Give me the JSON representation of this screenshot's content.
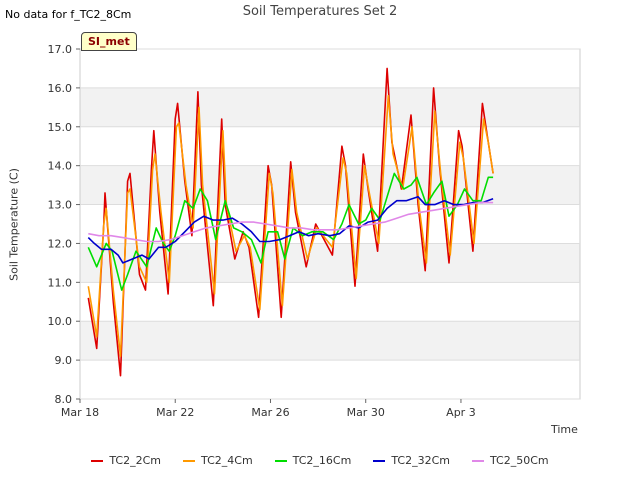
{
  "note": "No data for f_TC2_8Cm",
  "site_badge": "SI_met",
  "chart_data": {
    "type": "line",
    "title": "Soil Temperatures Set 2",
    "xlabel": "Time",
    "ylabel": "Soil Temperature (C)",
    "ylim": [
      8.0,
      17.0
    ],
    "xlim": [
      0,
      21
    ],
    "y_ticks": [
      "8.0",
      "9.0",
      "10.0",
      "11.0",
      "12.0",
      "13.0",
      "14.0",
      "15.0",
      "16.0",
      "17.0"
    ],
    "x_ticks": [
      {
        "x": 0,
        "label": "Mar 18"
      },
      {
        "x": 4,
        "label": "Mar 22"
      },
      {
        "x": 8,
        "label": "Mar 26"
      },
      {
        "x": 12,
        "label": "Mar 30"
      },
      {
        "x": 16,
        "label": "Apr 3"
      }
    ],
    "grid": true,
    "legend_position": "bottom",
    "x_units": "days since Mar 18",
    "series": [
      {
        "name": "TC2_2Cm",
        "color": "#dd0000",
        "points": [
          [
            0.35,
            10.6
          ],
          [
            0.7,
            9.3
          ],
          [
            1.0,
            12.5
          ],
          [
            1.05,
            13.3
          ],
          [
            1.4,
            10.5
          ],
          [
            1.7,
            8.6
          ],
          [
            2.0,
            13.6
          ],
          [
            2.1,
            13.8
          ],
          [
            2.5,
            11.2
          ],
          [
            2.75,
            10.8
          ],
          [
            3.0,
            13.9
          ],
          [
            3.1,
            14.9
          ],
          [
            3.35,
            12.8
          ],
          [
            3.7,
            10.7
          ],
          [
            4.0,
            15.2
          ],
          [
            4.1,
            15.6
          ],
          [
            4.4,
            13.6
          ],
          [
            4.7,
            12.2
          ],
          [
            4.95,
            15.9
          ],
          [
            5.1,
            13.5
          ],
          [
            5.6,
            10.4
          ],
          [
            5.95,
            15.2
          ],
          [
            6.1,
            13.0
          ],
          [
            6.5,
            11.6
          ],
          [
            6.85,
            12.3
          ],
          [
            7.1,
            11.9
          ],
          [
            7.5,
            10.1
          ],
          [
            7.9,
            14.0
          ],
          [
            8.05,
            13.5
          ],
          [
            8.45,
            10.1
          ],
          [
            8.85,
            14.1
          ],
          [
            9.05,
            12.8
          ],
          [
            9.5,
            11.4
          ],
          [
            9.9,
            12.5
          ],
          [
            10.6,
            11.7
          ],
          [
            11.0,
            14.5
          ],
          [
            11.15,
            14.0
          ],
          [
            11.55,
            10.9
          ],
          [
            11.9,
            14.3
          ],
          [
            12.1,
            13.4
          ],
          [
            12.5,
            11.8
          ],
          [
            12.9,
            16.5
          ],
          [
            13.1,
            14.6
          ],
          [
            13.5,
            13.4
          ],
          [
            13.9,
            15.3
          ],
          [
            14.2,
            13.0
          ],
          [
            14.5,
            11.3
          ],
          [
            14.85,
            16.0
          ],
          [
            15.1,
            14.0
          ],
          [
            15.5,
            11.5
          ],
          [
            15.9,
            14.9
          ],
          [
            16.05,
            14.5
          ],
          [
            16.5,
            11.8
          ],
          [
            16.9,
            15.6
          ],
          [
            17.1,
            14.8
          ],
          [
            17.35,
            13.8
          ]
        ]
      },
      {
        "name": "TC2_4Cm",
        "color": "#ff9900",
        "points": [
          [
            0.35,
            10.9
          ],
          [
            0.7,
            9.6
          ],
          [
            1.0,
            12.5
          ],
          [
            1.1,
            12.9
          ],
          [
            1.4,
            10.8
          ],
          [
            1.7,
            9.1
          ],
          [
            2.0,
            13.3
          ],
          [
            2.1,
            13.4
          ],
          [
            2.5,
            11.4
          ],
          [
            2.8,
            11.0
          ],
          [
            3.05,
            13.9
          ],
          [
            3.15,
            14.3
          ],
          [
            3.4,
            12.8
          ],
          [
            3.75,
            11.0
          ],
          [
            4.05,
            15.0
          ],
          [
            4.15,
            15.1
          ],
          [
            4.45,
            13.5
          ],
          [
            4.75,
            12.4
          ],
          [
            5.0,
            15.5
          ],
          [
            5.15,
            13.5
          ],
          [
            5.65,
            10.7
          ],
          [
            6.0,
            14.9
          ],
          [
            6.15,
            13.0
          ],
          [
            6.55,
            11.8
          ],
          [
            6.9,
            12.2
          ],
          [
            7.15,
            11.9
          ],
          [
            7.55,
            10.3
          ],
          [
            7.95,
            13.8
          ],
          [
            8.1,
            13.3
          ],
          [
            8.5,
            10.4
          ],
          [
            8.9,
            13.9
          ],
          [
            9.1,
            12.8
          ],
          [
            9.55,
            11.6
          ],
          [
            9.95,
            12.4
          ],
          [
            10.6,
            11.9
          ],
          [
            11.05,
            14.2
          ],
          [
            11.2,
            13.8
          ],
          [
            11.6,
            11.1
          ],
          [
            11.95,
            14.0
          ],
          [
            12.15,
            13.3
          ],
          [
            12.55,
            12.0
          ],
          [
            12.95,
            15.8
          ],
          [
            13.15,
            14.3
          ],
          [
            13.55,
            13.4
          ],
          [
            13.95,
            15.0
          ],
          [
            14.25,
            12.9
          ],
          [
            14.55,
            11.5
          ],
          [
            14.9,
            15.4
          ],
          [
            15.15,
            13.8
          ],
          [
            15.55,
            11.7
          ],
          [
            15.95,
            14.6
          ],
          [
            16.1,
            14.2
          ],
          [
            16.55,
            12.0
          ],
          [
            16.95,
            15.2
          ],
          [
            17.15,
            14.6
          ],
          [
            17.35,
            13.8
          ]
        ]
      },
      {
        "name": "TC2_16Cm",
        "color": "#00dd00",
        "points": [
          [
            0.35,
            11.9
          ],
          [
            0.7,
            11.4
          ],
          [
            1.1,
            12.0
          ],
          [
            1.35,
            11.8
          ],
          [
            1.75,
            10.8
          ],
          [
            2.0,
            11.2
          ],
          [
            2.35,
            11.8
          ],
          [
            2.8,
            11.4
          ],
          [
            3.2,
            12.4
          ],
          [
            3.5,
            12.0
          ],
          [
            3.75,
            11.8
          ],
          [
            4.0,
            12.2
          ],
          [
            4.4,
            13.1
          ],
          [
            4.75,
            12.9
          ],
          [
            5.05,
            13.4
          ],
          [
            5.35,
            13.1
          ],
          [
            5.7,
            12.1
          ],
          [
            6.1,
            13.1
          ],
          [
            6.45,
            12.4
          ],
          [
            6.8,
            12.3
          ],
          [
            7.2,
            12.1
          ],
          [
            7.6,
            11.5
          ],
          [
            7.9,
            12.3
          ],
          [
            8.3,
            12.3
          ],
          [
            8.6,
            11.6
          ],
          [
            8.95,
            12.4
          ],
          [
            9.35,
            12.2
          ],
          [
            9.75,
            12.3
          ],
          [
            10.2,
            12.3
          ],
          [
            10.65,
            12.1
          ],
          [
            11.0,
            12.5
          ],
          [
            11.3,
            13.0
          ],
          [
            11.7,
            12.5
          ],
          [
            12.0,
            12.6
          ],
          [
            12.25,
            12.9
          ],
          [
            12.6,
            12.6
          ],
          [
            12.9,
            13.2
          ],
          [
            13.2,
            13.8
          ],
          [
            13.6,
            13.4
          ],
          [
            13.9,
            13.5
          ],
          [
            14.15,
            13.7
          ],
          [
            14.55,
            13.0
          ],
          [
            14.85,
            13.3
          ],
          [
            15.2,
            13.6
          ],
          [
            15.5,
            12.7
          ],
          [
            15.85,
            13.0
          ],
          [
            16.15,
            13.4
          ],
          [
            16.5,
            13.1
          ],
          [
            16.85,
            13.1
          ],
          [
            17.15,
            13.7
          ],
          [
            17.35,
            13.7
          ]
        ]
      },
      {
        "name": "TC2_32Cm",
        "color": "#0000cc",
        "points": [
          [
            0.35,
            12.15
          ],
          [
            0.6,
            12.0
          ],
          [
            0.9,
            11.85
          ],
          [
            1.3,
            11.85
          ],
          [
            1.6,
            11.7
          ],
          [
            1.8,
            11.5
          ],
          [
            2.2,
            11.6
          ],
          [
            2.6,
            11.7
          ],
          [
            2.9,
            11.6
          ],
          [
            3.3,
            11.9
          ],
          [
            3.6,
            11.9
          ],
          [
            4.0,
            12.05
          ],
          [
            4.4,
            12.3
          ],
          [
            4.8,
            12.55
          ],
          [
            5.2,
            12.7
          ],
          [
            5.6,
            12.6
          ],
          [
            6.0,
            12.6
          ],
          [
            6.4,
            12.65
          ],
          [
            6.8,
            12.5
          ],
          [
            7.2,
            12.3
          ],
          [
            7.55,
            12.05
          ],
          [
            7.95,
            12.05
          ],
          [
            8.4,
            12.1
          ],
          [
            8.8,
            12.2
          ],
          [
            9.2,
            12.3
          ],
          [
            9.6,
            12.2
          ],
          [
            10.0,
            12.25
          ],
          [
            10.5,
            12.2
          ],
          [
            10.9,
            12.25
          ],
          [
            11.3,
            12.45
          ],
          [
            11.7,
            12.4
          ],
          [
            12.1,
            12.55
          ],
          [
            12.5,
            12.6
          ],
          [
            12.9,
            12.9
          ],
          [
            13.3,
            13.1
          ],
          [
            13.7,
            13.1
          ],
          [
            14.2,
            13.2
          ],
          [
            14.5,
            13.0
          ],
          [
            14.9,
            13.0
          ],
          [
            15.3,
            13.1
          ],
          [
            15.7,
            13.0
          ],
          [
            16.1,
            13.0
          ],
          [
            16.5,
            13.05
          ],
          [
            16.9,
            13.05
          ],
          [
            17.35,
            13.15
          ]
        ]
      },
      {
        "name": "TC2_50Cm",
        "color": "#e088e8",
        "points": [
          [
            0.35,
            12.25
          ],
          [
            0.8,
            12.2
          ],
          [
            1.3,
            12.2
          ],
          [
            1.8,
            12.15
          ],
          [
            2.3,
            12.1
          ],
          [
            2.8,
            12.05
          ],
          [
            3.3,
            12.05
          ],
          [
            3.8,
            12.1
          ],
          [
            4.3,
            12.2
          ],
          [
            4.8,
            12.3
          ],
          [
            5.3,
            12.4
          ],
          [
            5.8,
            12.45
          ],
          [
            6.3,
            12.5
          ],
          [
            6.8,
            12.55
          ],
          [
            7.3,
            12.55
          ],
          [
            7.8,
            12.5
          ],
          [
            8.3,
            12.45
          ],
          [
            8.8,
            12.4
          ],
          [
            9.3,
            12.4
          ],
          [
            9.8,
            12.35
          ],
          [
            10.3,
            12.35
          ],
          [
            10.8,
            12.35
          ],
          [
            11.3,
            12.4
          ],
          [
            11.8,
            12.45
          ],
          [
            12.3,
            12.5
          ],
          [
            12.8,
            12.55
          ],
          [
            13.3,
            12.65
          ],
          [
            13.8,
            12.75
          ],
          [
            14.3,
            12.8
          ],
          [
            14.8,
            12.85
          ],
          [
            15.3,
            12.9
          ],
          [
            15.8,
            12.95
          ],
          [
            16.3,
            13.0
          ],
          [
            16.8,
            13.05
          ],
          [
            17.35,
            13.05
          ]
        ]
      }
    ]
  }
}
